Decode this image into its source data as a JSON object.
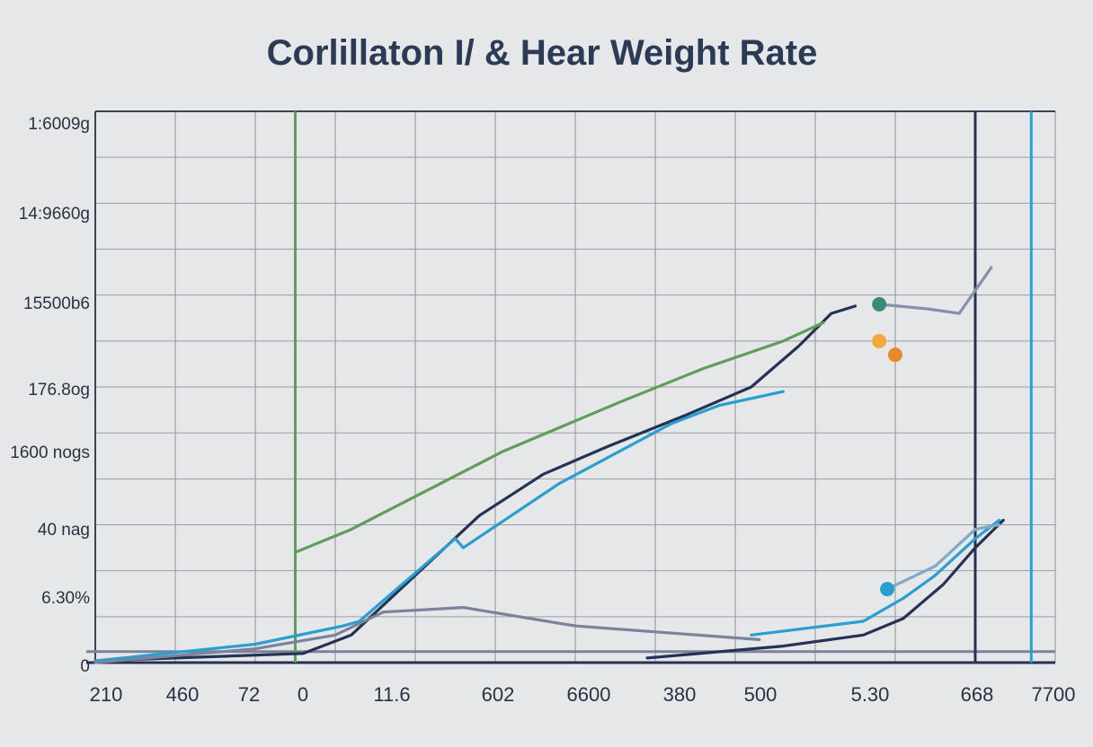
{
  "chart_data": {
    "type": "line",
    "title": "Corlillaton I/ & Hear Weight Rate",
    "xlabel": "",
    "ylabel": "",
    "x_tick_labels": [
      "210",
      "460",
      "72",
      "0",
      "11.6",
      "602",
      "6600",
      "380",
      "500",
      "5.30",
      "668",
      "7700"
    ],
    "y_tick_labels": [
      "1:6009g",
      "14:9660g",
      "15500b6",
      "176.8og",
      "1600 nogs",
      "40 nag",
      "6.30%",
      "0"
    ],
    "grid": true,
    "legend": "none",
    "series": [
      {
        "color": "#243354",
        "points": [
          [
            0,
            0.02
          ],
          [
            2.6,
            0.1
          ],
          [
            3.2,
            0.3
          ],
          [
            4.0,
            0.95
          ],
          [
            4.8,
            1.6
          ],
          [
            5.6,
            2.05
          ],
          [
            6.4,
            2.35
          ],
          [
            7.4,
            2.7
          ],
          [
            8.2,
            3.0
          ],
          [
            8.8,
            3.45
          ],
          [
            9.2,
            3.8
          ],
          [
            9.5,
            3.88
          ]
        ]
      },
      {
        "color": "#5f9e5a",
        "points": [
          [
            2.5,
            1.2
          ],
          [
            3.2,
            1.45
          ],
          [
            5.1,
            2.3
          ],
          [
            6.6,
            2.85
          ],
          [
            7.6,
            3.2
          ],
          [
            8.6,
            3.5
          ],
          [
            9.1,
            3.7
          ]
        ]
      },
      {
        "color": "#2a9fcf",
        "points": [
          [
            0,
            0.02
          ],
          [
            2.0,
            0.2
          ],
          [
            3.1,
            0.4
          ],
          [
            3.3,
            0.45
          ],
          [
            4.5,
            1.35
          ],
          [
            4.6,
            1.25
          ],
          [
            5.8,
            1.95
          ],
          [
            7.2,
            2.6
          ],
          [
            7.8,
            2.8
          ],
          [
            8.6,
            2.95
          ]
        ]
      },
      {
        "color": "#7a829c",
        "points": [
          [
            0,
            0
          ],
          [
            2.0,
            0.15
          ],
          [
            3.0,
            0.3
          ],
          [
            3.6,
            0.55
          ],
          [
            4.6,
            0.6
          ],
          [
            6.0,
            0.4
          ],
          [
            8.3,
            0.25
          ]
        ]
      },
      {
        "color": "#243354",
        "points": [
          [
            6.9,
            0.05
          ],
          [
            8.6,
            0.18
          ],
          [
            9.6,
            0.3
          ],
          [
            10.1,
            0.48
          ],
          [
            10.6,
            0.85
          ],
          [
            11.0,
            1.25
          ],
          [
            11.35,
            1.55
          ]
        ]
      },
      {
        "color": "#2a9fcf",
        "points": [
          [
            8.2,
            0.3
          ],
          [
            9.6,
            0.45
          ],
          [
            10.1,
            0.7
          ],
          [
            10.5,
            0.95
          ],
          [
            11.0,
            1.35
          ],
          [
            11.3,
            1.55
          ]
        ]
      },
      {
        "color": "#7fa9c9",
        "points": [
          [
            9.9,
            0.8
          ],
          [
            10.5,
            1.05
          ],
          [
            11.0,
            1.45
          ],
          [
            11.3,
            1.5
          ]
        ]
      },
      {
        "color": "#8690ad",
        "points": [
          [
            9.8,
            3.9
          ],
          [
            10.4,
            3.85
          ],
          [
            10.8,
            3.8
          ],
          [
            11.2,
            4.3
          ]
        ]
      }
    ],
    "markers": [
      {
        "color": "#3a8a7a",
        "x": 9.8,
        "y": 3.9
      },
      {
        "color": "#e8892c",
        "x": 10.0,
        "y": 3.35
      },
      {
        "color": "#f2a93b",
        "x": 9.8,
        "y": 3.5
      },
      {
        "color": "#2a9fcf",
        "x": 9.9,
        "y": 0.8
      }
    ],
    "baselines": [
      {
        "color": "#243354",
        "y": 0
      },
      {
        "color": "#7a829c",
        "y": 0.12
      }
    ],
    "vertical_lines": [
      {
        "color": "#5f9e5a",
        "x": 2.5
      },
      {
        "color": "#243354",
        "x": 11.0
      },
      {
        "color": "#2a9fcf",
        "x": 11.7
      }
    ],
    "xlim": [
      0,
      12
    ],
    "ylim": [
      0,
      6
    ]
  }
}
